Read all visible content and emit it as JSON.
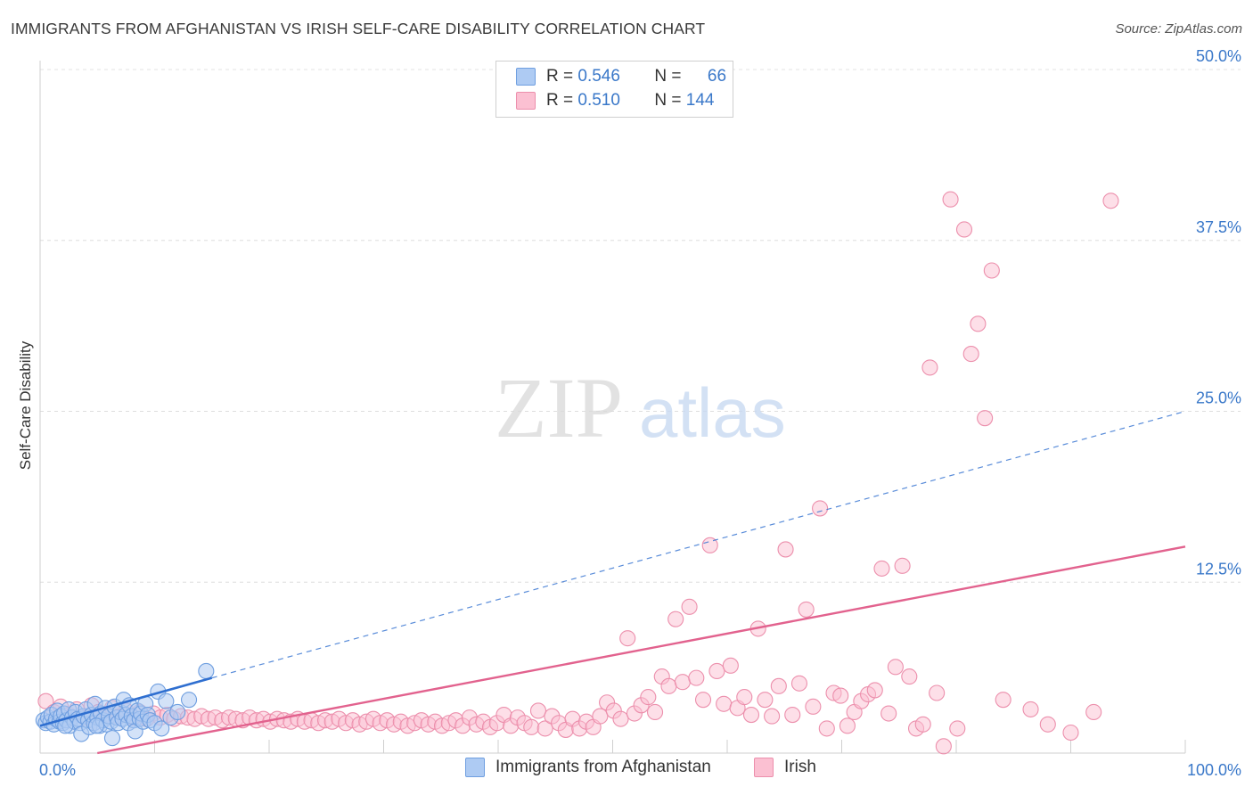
{
  "title": "IMMIGRANTS FROM AFGHANISTAN VS IRISH SELF-CARE DISABILITY CORRELATION CHART",
  "source": "Source: ZipAtlas.com",
  "watermark": {
    "zip": "ZIP",
    "atlas": "atlas"
  },
  "legend": {
    "r_label": "R =",
    "n_label": "N =",
    "series": [
      {
        "r": "0.546",
        "n": "66",
        "fill": "#aecbf3",
        "stroke": "#6f9fe0"
      },
      {
        "r": "0.510",
        "n": "144",
        "fill": "#fbc0d2",
        "stroke": "#ec8fac"
      }
    ]
  },
  "chart_data": {
    "type": "scatter",
    "title": "IMMIGRANTS FROM AFGHANISTAN VS IRISH SELF-CARE DISABILITY CORRELATION CHART",
    "ylabel": "Self-Care Disability",
    "xlim": [
      0,
      100
    ],
    "ylim": [
      0,
      50
    ],
    "x_tick_labels": [
      "0.0%",
      "100.0%"
    ],
    "y_ticks": [
      12.5,
      25.0,
      37.5,
      50.0
    ],
    "y_tick_labels": [
      "12.5%",
      "25.0%",
      "37.5%",
      "50.0%"
    ],
    "grid": true,
    "legend_position": "top-center",
    "series": [
      {
        "name": "Immigrants from Afghanistan",
        "color": "#6f9fe0",
        "fill": "#aecbf3",
        "trend": {
          "x": [
            0,
            15
          ],
          "y": [
            2.0,
            5.5
          ],
          "dashed_extension_to": [
            100,
            25.0
          ],
          "color": "#2f6fd0"
        },
        "points": [
          [
            0.3,
            2.4
          ],
          [
            0.5,
            2.2
          ],
          [
            0.7,
            2.6
          ],
          [
            0.9,
            2.3
          ],
          [
            1.0,
            2.8
          ],
          [
            1.2,
            2.1
          ],
          [
            1.4,
            2.5
          ],
          [
            1.5,
            3.1
          ],
          [
            1.7,
            2.3
          ],
          [
            1.8,
            2.7
          ],
          [
            2.0,
            2.2
          ],
          [
            2.1,
            2.9
          ],
          [
            2.3,
            2.4
          ],
          [
            2.5,
            3.2
          ],
          [
            2.6,
            2.0
          ],
          [
            2.8,
            2.6
          ],
          [
            3.0,
            2.3
          ],
          [
            3.1,
            3.0
          ],
          [
            3.3,
            2.5
          ],
          [
            3.5,
            2.2
          ],
          [
            3.6,
            1.4
          ],
          [
            3.8,
            2.7
          ],
          [
            4.0,
            3.2
          ],
          [
            4.2,
            2.4
          ],
          [
            4.3,
            1.9
          ],
          [
            4.5,
            2.8
          ],
          [
            4.7,
            2.2
          ],
          [
            4.8,
            3.6
          ],
          [
            5.0,
            2.6
          ],
          [
            5.2,
            2.0
          ],
          [
            5.3,
            2.9
          ],
          [
            5.5,
            2.4
          ],
          [
            5.7,
            3.3
          ],
          [
            5.8,
            2.1
          ],
          [
            6.0,
            2.7
          ],
          [
            6.2,
            2.3
          ],
          [
            6.3,
            1.1
          ],
          [
            6.5,
            3.4
          ],
          [
            6.7,
            2.6
          ],
          [
            6.8,
            2.2
          ],
          [
            7.0,
            3.0
          ],
          [
            7.2,
            2.5
          ],
          [
            7.3,
            3.9
          ],
          [
            7.5,
            2.8
          ],
          [
            7.7,
            2.2
          ],
          [
            7.8,
            3.5
          ],
          [
            8.0,
            2.7
          ],
          [
            8.2,
            2.4
          ],
          [
            8.3,
            1.6
          ],
          [
            8.5,
            3.1
          ],
          [
            8.7,
            2.5
          ],
          [
            8.8,
            2.9
          ],
          [
            9.0,
            2.3
          ],
          [
            9.2,
            3.6
          ],
          [
            9.4,
            2.8
          ],
          [
            9.6,
            2.4
          ],
          [
            10.0,
            2.2
          ],
          [
            10.3,
            4.5
          ],
          [
            10.6,
            1.8
          ],
          [
            11.0,
            3.8
          ],
          [
            11.4,
            2.6
          ],
          [
            12.0,
            3.0
          ],
          [
            13.0,
            3.9
          ],
          [
            2.2,
            2.0
          ],
          [
            4.9,
            2.0
          ],
          [
            14.5,
            6.0
          ]
        ]
      },
      {
        "name": "Irish",
        "color": "#ec8fac",
        "fill": "#fbc0d2",
        "trend": {
          "x": [
            5,
            100
          ],
          "y": [
            0.0,
            15.1
          ],
          "color": "#e2628e"
        },
        "points": [
          [
            0.5,
            3.8
          ],
          [
            1.2,
            3.0
          ],
          [
            1.8,
            3.4
          ],
          [
            2.5,
            2.8
          ],
          [
            3.2,
            3.2
          ],
          [
            3.9,
            2.6
          ],
          [
            4.5,
            3.5
          ],
          [
            5.1,
            3.0
          ],
          [
            5.7,
            2.8
          ],
          [
            6.3,
            3.3
          ],
          [
            6.9,
            2.7
          ],
          [
            7.5,
            3.1
          ],
          [
            8.1,
            2.6
          ],
          [
            8.7,
            3.0
          ],
          [
            9.3,
            2.5
          ],
          [
            9.9,
            2.9
          ],
          [
            10.5,
            2.6
          ],
          [
            11.1,
            2.8
          ],
          [
            11.7,
            2.5
          ],
          [
            12.3,
            2.7
          ],
          [
            12.9,
            2.6
          ],
          [
            13.5,
            2.5
          ],
          [
            14.1,
            2.7
          ],
          [
            14.7,
            2.5
          ],
          [
            15.3,
            2.6
          ],
          [
            15.9,
            2.4
          ],
          [
            16.5,
            2.6
          ],
          [
            17.1,
            2.5
          ],
          [
            17.7,
            2.4
          ],
          [
            18.3,
            2.6
          ],
          [
            18.9,
            2.4
          ],
          [
            19.5,
            2.5
          ],
          [
            20.1,
            2.3
          ],
          [
            20.7,
            2.5
          ],
          [
            21.3,
            2.4
          ],
          [
            21.9,
            2.3
          ],
          [
            22.5,
            2.5
          ],
          [
            23.1,
            2.3
          ],
          [
            23.7,
            2.4
          ],
          [
            24.3,
            2.2
          ],
          [
            24.9,
            2.4
          ],
          [
            25.5,
            2.3
          ],
          [
            26.1,
            2.5
          ],
          [
            26.7,
            2.2
          ],
          [
            27.3,
            2.4
          ],
          [
            27.9,
            2.1
          ],
          [
            28.5,
            2.3
          ],
          [
            29.1,
            2.5
          ],
          [
            29.7,
            2.2
          ],
          [
            30.3,
            2.4
          ],
          [
            30.9,
            2.1
          ],
          [
            31.5,
            2.3
          ],
          [
            32.1,
            2.0
          ],
          [
            32.7,
            2.2
          ],
          [
            33.3,
            2.4
          ],
          [
            33.9,
            2.1
          ],
          [
            34.5,
            2.3
          ],
          [
            35.1,
            2.0
          ],
          [
            35.7,
            2.2
          ],
          [
            36.3,
            2.4
          ],
          [
            36.9,
            2.0
          ],
          [
            37.5,
            2.6
          ],
          [
            38.1,
            2.1
          ],
          [
            38.7,
            2.3
          ],
          [
            39.3,
            1.9
          ],
          [
            39.9,
            2.2
          ],
          [
            40.5,
            2.8
          ],
          [
            41.1,
            2.0
          ],
          [
            41.7,
            2.6
          ],
          [
            42.3,
            2.2
          ],
          [
            42.9,
            1.9
          ],
          [
            43.5,
            3.1
          ],
          [
            44.1,
            1.8
          ],
          [
            44.7,
            2.7
          ],
          [
            45.3,
            2.2
          ],
          [
            45.9,
            1.7
          ],
          [
            46.5,
            2.5
          ],
          [
            47.1,
            1.8
          ],
          [
            47.7,
            2.3
          ],
          [
            48.3,
            1.9
          ],
          [
            48.9,
            2.7
          ],
          [
            49.5,
            3.7
          ],
          [
            50.1,
            3.1
          ],
          [
            50.7,
            2.5
          ],
          [
            51.3,
            8.4
          ],
          [
            51.9,
            2.9
          ],
          [
            52.5,
            3.5
          ],
          [
            53.1,
            4.1
          ],
          [
            53.7,
            3.0
          ],
          [
            54.3,
            5.6
          ],
          [
            54.9,
            4.9
          ],
          [
            55.5,
            9.8
          ],
          [
            56.1,
            5.2
          ],
          [
            56.7,
            10.7
          ],
          [
            57.3,
            5.5
          ],
          [
            57.9,
            3.9
          ],
          [
            58.5,
            15.2
          ],
          [
            59.1,
            6.0
          ],
          [
            59.7,
            3.6
          ],
          [
            60.3,
            6.4
          ],
          [
            60.9,
            3.3
          ],
          [
            61.5,
            4.1
          ],
          [
            62.1,
            2.8
          ],
          [
            62.7,
            9.1
          ],
          [
            63.3,
            3.9
          ],
          [
            63.9,
            2.7
          ],
          [
            64.5,
            4.9
          ],
          [
            65.1,
            14.9
          ],
          [
            65.7,
            2.8
          ],
          [
            66.3,
            5.1
          ],
          [
            66.9,
            10.5
          ],
          [
            67.5,
            3.4
          ],
          [
            68.1,
            17.9
          ],
          [
            68.7,
            1.8
          ],
          [
            69.3,
            4.4
          ],
          [
            69.9,
            4.2
          ],
          [
            70.5,
            2.0
          ],
          [
            71.1,
            3.0
          ],
          [
            71.7,
            3.8
          ],
          [
            72.3,
            4.3
          ],
          [
            72.9,
            4.6
          ],
          [
            73.5,
            13.5
          ],
          [
            74.1,
            2.9
          ],
          [
            74.7,
            6.3
          ],
          [
            75.3,
            13.7
          ],
          [
            75.9,
            5.6
          ],
          [
            76.5,
            1.8
          ],
          [
            77.1,
            2.1
          ],
          [
            77.7,
            28.2
          ],
          [
            78.3,
            4.4
          ],
          [
            78.9,
            0.5
          ],
          [
            79.5,
            40.5
          ],
          [
            80.1,
            1.8
          ],
          [
            80.7,
            38.3
          ],
          [
            81.3,
            29.2
          ],
          [
            81.9,
            31.4
          ],
          [
            82.5,
            24.5
          ],
          [
            83.1,
            35.3
          ],
          [
            84.1,
            3.9
          ],
          [
            86.5,
            3.2
          ],
          [
            88.0,
            2.1
          ],
          [
            90.0,
            1.5
          ],
          [
            92.0,
            3.0
          ],
          [
            93.5,
            40.4
          ]
        ]
      }
    ]
  },
  "bottom_legend": [
    "Immigrants from Afghanistan",
    "Irish"
  ]
}
